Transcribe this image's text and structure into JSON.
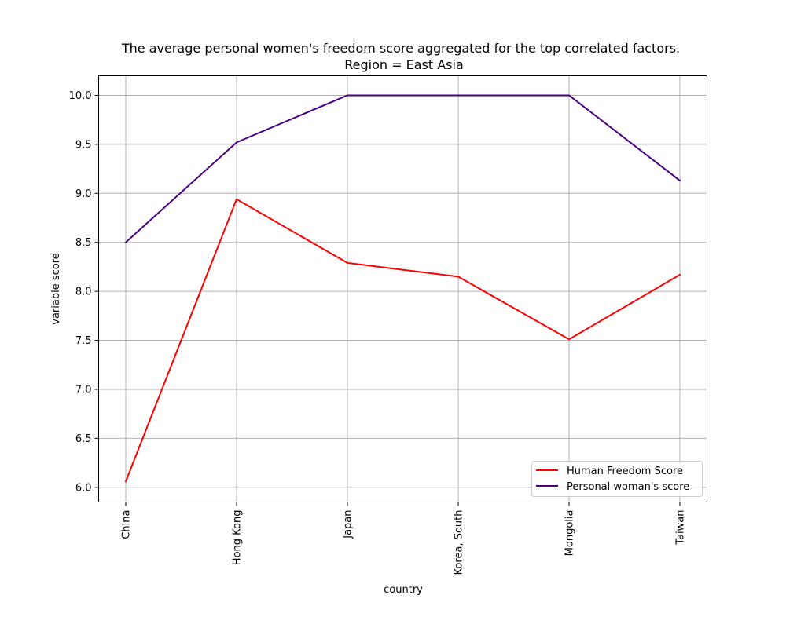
{
  "chart_data": {
    "type": "line",
    "title_line1": "The average personal women's freedom score aggregated for the top correlated factors.",
    "title_line2": "Region = East Asia",
    "xlabel": "country",
    "ylabel": "variable score",
    "categories": [
      "China",
      "Hong Kong",
      "Japan",
      "Korea, South",
      "Mongolia",
      "Taiwan"
    ],
    "ylim": [
      5.85,
      10.2
    ],
    "yticks": [
      6.0,
      6.5,
      7.0,
      7.5,
      8.0,
      8.5,
      9.0,
      9.5,
      10.0
    ],
    "ytick_labels": [
      "6.0",
      "6.5",
      "7.0",
      "7.5",
      "8.0",
      "8.5",
      "9.0",
      "9.5",
      "10.0"
    ],
    "grid": true,
    "legend_position": "lower-right",
    "series": [
      {
        "name": "Human Freedom Score",
        "color": "#ff0000",
        "values": [
          6.06,
          8.94,
          8.29,
          8.15,
          7.51,
          8.17
        ]
      },
      {
        "name": "Personal woman's score",
        "color": "#4b0082",
        "values": [
          8.5,
          9.52,
          10.0,
          10.0,
          10.0,
          9.13
        ]
      }
    ]
  }
}
